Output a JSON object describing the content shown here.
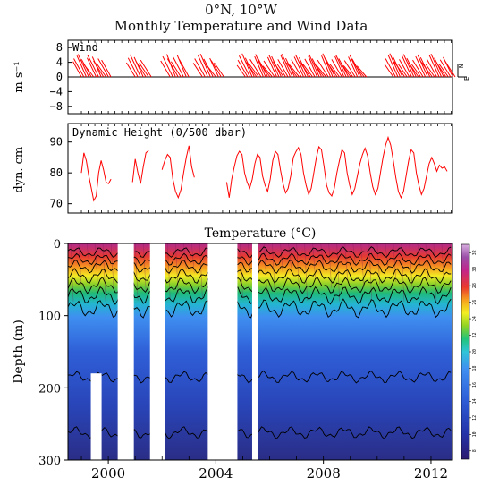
{
  "header": {
    "location": "0°N, 10°W",
    "title": "Monthly Temperature and Wind Data"
  },
  "chart_data": [
    {
      "type": "line",
      "panel": "wind",
      "title": "Wind",
      "ylabel": "m s⁻¹",
      "ylim": [
        -10,
        10
      ],
      "yticks": [
        "8",
        "4",
        "0",
        "−4",
        "−8"
      ],
      "ytick_values": [
        8,
        4,
        0,
        -4,
        -8
      ],
      "compass": {
        "north": "N",
        "east": "E"
      },
      "color": "#ff0000",
      "segments": [
        {
          "start": 1999.0,
          "end": 2000.1,
          "u": [
            -2.5,
            -3,
            -2.8,
            -3.2,
            -2.9,
            -3.1,
            -2.7,
            -3.3,
            -2.6,
            -3.0,
            -2.9,
            -3.1,
            -2.8
          ],
          "v": [
            4.2,
            5.0,
            5.8,
            6.2,
            4.8,
            3.6,
            5.2,
            6.0,
            5.5,
            4.4,
            3.8,
            5.0,
            4.6
          ]
        },
        {
          "start": 2001.0,
          "end": 2001.6,
          "u": [
            -2.6,
            -2.9,
            -3.1,
            -2.7,
            -3.0,
            -2.8,
            -3.2
          ],
          "v": [
            3.9,
            5.2,
            6.1,
            5.4,
            4.3,
            3.8,
            4.6
          ]
        },
        {
          "start": 2002.3,
          "end": 2003.0,
          "u": [
            -2.8,
            -3.0,
            -2.6,
            -3.2,
            -2.9,
            -3.1,
            -2.7,
            -2.9
          ],
          "v": [
            4.4,
            5.6,
            6.2,
            5.0,
            4.2,
            5.4,
            6.0,
            4.8
          ]
        },
        {
          "start": 2003.5,
          "end": 2004.3,
          "u": [
            -2.7,
            -3.1,
            -2.9,
            -3.0,
            -2.8,
            -3.2,
            -2.6,
            -3.0,
            -2.9
          ],
          "v": [
            3.8,
            5.0,
            5.9,
            6.3,
            4.9,
            3.7,
            5.1,
            4.5,
            3.9
          ]
        },
        {
          "start": 2005.1,
          "end": 2009.6,
          "u": [
            -2.5,
            -2.9,
            -3.2,
            -3.0,
            -2.7,
            -3.1,
            -2.8,
            -3.3,
            -2.6,
            -3.0,
            -2.9,
            -3.1,
            -2.8,
            -3.2,
            -2.7,
            -3.0,
            -2.9,
            -3.1,
            -2.6,
            -3.0,
            -2.8,
            -3.2,
            -2.7,
            -3.1,
            -2.9,
            -3.0,
            -2.8,
            -3.1,
            -2.7,
            -3.2,
            -2.9,
            -3.0,
            -2.6,
            -3.1,
            -2.8,
            -3.0,
            -2.9,
            -3.2,
            -2.7,
            -3.0,
            -2.9,
            -3.1,
            -2.8,
            -3.0,
            -2.7,
            -3.1,
            -2.9,
            -3.0,
            -2.8,
            -3.2,
            -2.7,
            -3.0,
            -2.9,
            -3.1,
            -2.8
          ],
          "v": [
            3.2,
            4.6,
            5.8,
            6.4,
            5.2,
            4.0,
            3.4,
            4.8,
            5.6,
            6.2,
            5.0,
            3.8,
            3.0,
            4.4,
            5.4,
            6.0,
            5.6,
            4.2,
            3.6,
            4.8,
            5.9,
            6.3,
            5.1,
            3.9,
            3.3,
            4.7,
            5.5,
            6.1,
            5.3,
            4.1,
            3.5,
            4.9,
            5.7,
            6.2,
            5.0,
            3.8,
            3.2,
            4.6,
            5.8,
            6.4,
            5.2,
            4.0,
            3.4,
            4.8,
            5.6,
            6.0,
            5.0,
            3.8,
            3.1,
            4.5,
            5.5,
            6.1,
            4.9,
            3.7,
            3.0
          ]
        },
        {
          "start": 2010.6,
          "end": 2012.9,
          "u": [
            -2.7,
            -3.0,
            -2.9,
            -3.1,
            -2.8,
            -3.2,
            -2.6,
            -3.0,
            -2.9,
            -3.1,
            -2.8,
            -3.0,
            -2.7,
            -3.1,
            -2.9,
            -3.0,
            -2.8,
            -3.2,
            -2.7,
            -3.0,
            -2.9,
            -3.1,
            -2.8,
            -3.0,
            -2.7,
            -3.1,
            -2.9,
            -3.0
          ],
          "v": [
            3.6,
            5.0,
            6.0,
            6.4,
            5.4,
            4.2,
            3.5,
            4.8,
            5.8,
            6.2,
            5.1,
            3.9,
            3.4,
            4.6,
            5.6,
            6.1,
            5.3,
            4.0,
            3.6,
            4.9,
            5.9,
            6.3,
            5.2,
            4.1,
            3.5,
            4.7,
            5.4,
            4.3
          ]
        }
      ]
    },
    {
      "type": "line",
      "panel": "dynamic_height",
      "title": "Dynamic Height (0/500 dbar)",
      "ylabel": "dyn. cm",
      "ylim": [
        67,
        96
      ],
      "yticks": [
        "90",
        "80",
        "70"
      ],
      "ytick_values": [
        90,
        80,
        70
      ],
      "color": "#ff0000",
      "segments": [
        {
          "start": 1999.0,
          "end": 2000.1,
          "values": [
            80,
            86.5,
            84,
            79,
            75,
            71,
            72.5,
            80,
            84,
            81,
            77,
            76.5,
            78
          ]
        },
        {
          "start": 2000.9,
          "end": 2001.5,
          "values": [
            77,
            84.5,
            80,
            76.5,
            82,
            86.5,
            87.2
          ]
        },
        {
          "start": 2002.0,
          "end": 2003.2,
          "values": [
            81,
            84,
            86,
            85,
            78,
            74,
            72,
            74.5,
            80,
            85,
            88.8,
            82,
            78.5
          ]
        },
        {
          "start": 2004.4,
          "end": 2012.6,
          "values": [
            77,
            72,
            78,
            82,
            85.5,
            87,
            86,
            80,
            77,
            75,
            78,
            83,
            86,
            85,
            79,
            76,
            74,
            78,
            84,
            87,
            86,
            81,
            76.5,
            73.5,
            75,
            79,
            85,
            86.8,
            88.2,
            86,
            80,
            76,
            73,
            75,
            80,
            85,
            88.5,
            87.5,
            82,
            76,
            73.5,
            72.5,
            75,
            80,
            84,
            87.5,
            86.5,
            80,
            76,
            73,
            75,
            79,
            83,
            86,
            88,
            85.5,
            80,
            75.5,
            73,
            75,
            80,
            85,
            89,
            91.5,
            89,
            84,
            78.5,
            74,
            72,
            74,
            79,
            84,
            87.5,
            86.5,
            80,
            76,
            73,
            75,
            79,
            83,
            85,
            83,
            80.5,
            82.5,
            81.5,
            82,
            80.5
          ]
        }
      ]
    },
    {
      "type": "heatmap",
      "panel": "temperature",
      "title": "Temperature (°C)",
      "ylabel": "Depth (m)",
      "xlim": [
        1998.5,
        2012.8
      ],
      "ylim": [
        300,
        0
      ],
      "yticks": [
        "0",
        "100",
        "200",
        "300"
      ],
      "ytick_values": [
        0,
        100,
        200,
        300
      ],
      "xticks": [
        "2000",
        "2004",
        "2008",
        "2012"
      ],
      "xtick_values": [
        2000,
        2004,
        2008,
        2012
      ],
      "data_gaps": [
        [
          2000.35,
          2000.95
        ],
        [
          2001.55,
          2002.1
        ],
        [
          2003.7,
          2004.8
        ],
        [
          2005.35,
          2005.55
        ]
      ],
      "partial_gap": {
        "start": 1999.35,
        "end": 1999.75,
        "depth_from": 180,
        "depth_to": 300
      },
      "colorbar": {
        "colors": [
          "#2b1a6f",
          "#2433a8",
          "#2f5fd8",
          "#3f8ff0",
          "#2fc4d8",
          "#23c47a",
          "#8ed323",
          "#f3ee22",
          "#f7a21f",
          "#ea3a2c",
          "#c2258c",
          "#9b4ea8",
          "#d8aee0"
        ],
        "ticks": [
          "8",
          "10",
          "12",
          "14",
          "16",
          "18",
          "20",
          "22",
          "24",
          "26",
          "28",
          "30",
          "32"
        ]
      }
    }
  ]
}
